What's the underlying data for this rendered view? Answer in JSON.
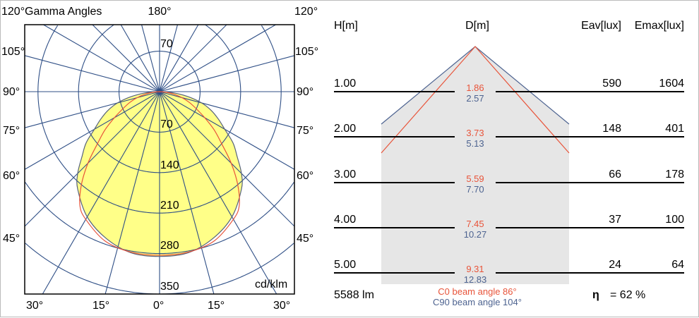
{
  "polar": {
    "title": "Gamma Angles",
    "unit": "cd/klm",
    "top_left": "120°",
    "top_center": "180°",
    "top_right": "120°",
    "side_labels": [
      "105°",
      "90°",
      "75°",
      "60°",
      "45°"
    ],
    "bottom_labels": [
      "30°",
      "15°",
      "0°",
      "15°",
      "30°"
    ],
    "ring_labels_top": [
      "70"
    ],
    "ring_labels_bottom": [
      "70",
      "140",
      "210",
      "280",
      "350"
    ]
  },
  "chart_data": {
    "type": "polar",
    "unit": "cd/klm",
    "rmax": 350,
    "rings": [
      70,
      140,
      210,
      280,
      350
    ],
    "angle_step_deg": 15,
    "colors": {
      "C0": "#e8543a",
      "C90": "#4d6390",
      "fill": "#ffff88",
      "grid": "#2f4f86"
    },
    "series": [
      {
        "name": "C90",
        "gamma": [
          0,
          10,
          20,
          30,
          40,
          45,
          50,
          55,
          60,
          65,
          70,
          75,
          80,
          85,
          90
        ],
        "values": [
          285,
          283,
          270,
          250,
          220,
          200,
          175,
          155,
          130,
          112,
          95,
          75,
          50,
          25,
          0
        ]
      },
      {
        "name": "C0",
        "gamma": [
          0,
          10,
          20,
          30,
          35,
          40,
          45,
          50,
          55,
          60,
          65,
          70,
          75,
          80,
          85,
          90
        ],
        "values": [
          283,
          282,
          275,
          255,
          240,
          210,
          175,
          140,
          115,
          90,
          70,
          55,
          40,
          25,
          12,
          0
        ]
      }
    ]
  },
  "table": {
    "headers": {
      "h": "H[m]",
      "d": "D[m]",
      "eav": "Eav[lux]",
      "emax": "Emax[lux]"
    },
    "rows": [
      {
        "h": "1.00",
        "d_c0": "1.86",
        "d_c90": "2.57",
        "eav": "590",
        "emax": "1604"
      },
      {
        "h": "2.00",
        "d_c0": "3.73",
        "d_c90": "5.13",
        "eav": "148",
        "emax": "401"
      },
      {
        "h": "3.00",
        "d_c0": "5.59",
        "d_c90": "7.70",
        "eav": "66",
        "emax": "178"
      },
      {
        "h": "4.00",
        "d_c0": "7.45",
        "d_c90": "10.27",
        "eav": "37",
        "emax": "100"
      },
      {
        "h": "5.00",
        "d_c0": "9.31",
        "d_c90": "12.83",
        "eav": "24",
        "emax": "64"
      }
    ],
    "flux": "5588 lm",
    "c0_beam": "C0  beam angle 86°",
    "c90_beam": "C90 beam angle 104°",
    "eta_symbol": "η",
    "eta": "= 62 %"
  }
}
